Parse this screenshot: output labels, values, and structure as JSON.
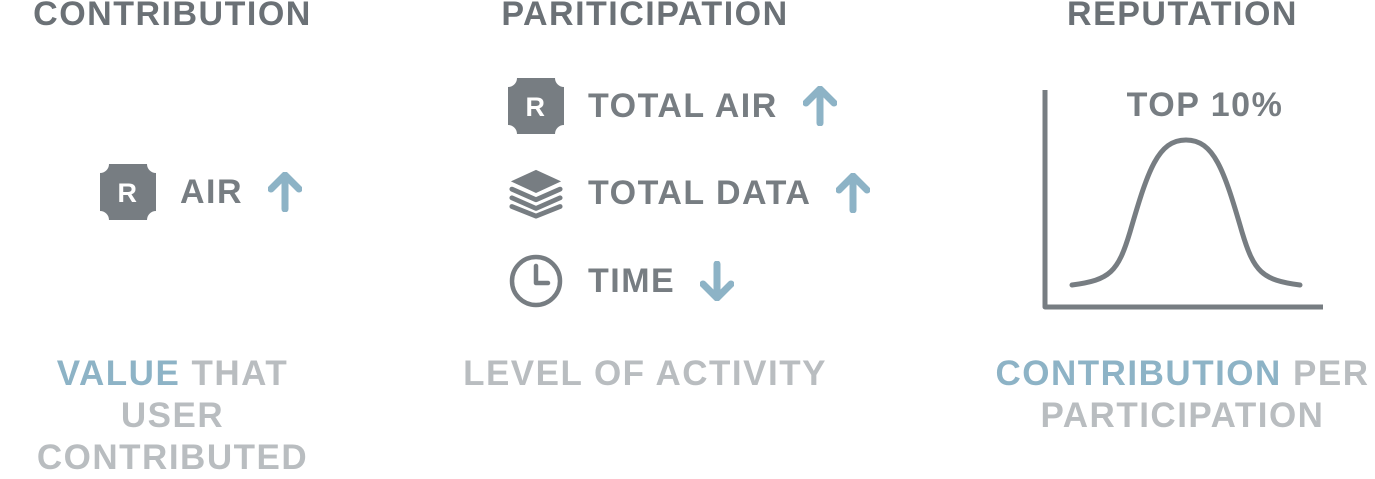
{
  "colors": {
    "heading": "#6b7176",
    "icon": "#777d82",
    "arrow": "#8db3c6",
    "footer": "#b9bdc0",
    "accent": "#8db3c6"
  },
  "contribution": {
    "heading": "CONTRIBUTION",
    "metric": {
      "icon": "reputation-r-icon",
      "badge_letter": "R",
      "label": "AIR",
      "trend": "up"
    },
    "footer_accent": "VALUE",
    "footer_rest": " THAT USER",
    "footer_line2": "CONTRIBUTED"
  },
  "participation": {
    "heading": "PARITICIPATION",
    "metrics": [
      {
        "icon": "reputation-r-icon",
        "badge_letter": "R",
        "label": "TOTAL AIR",
        "trend": "up"
      },
      {
        "icon": "layers-icon",
        "label": "TOTAL DATA",
        "trend": "up"
      },
      {
        "icon": "clock-icon",
        "label": "TIME",
        "trend": "down"
      }
    ],
    "footer": "LEVEL OF ACTIVITY"
  },
  "reputation": {
    "heading": "REPUTATION",
    "chart_label": "TOP 10%",
    "chart_type": "bell-curve",
    "footer_accent": "CONTRIBUTION",
    "footer_rest": " PER",
    "footer_line2": "PARTICIPATION"
  }
}
